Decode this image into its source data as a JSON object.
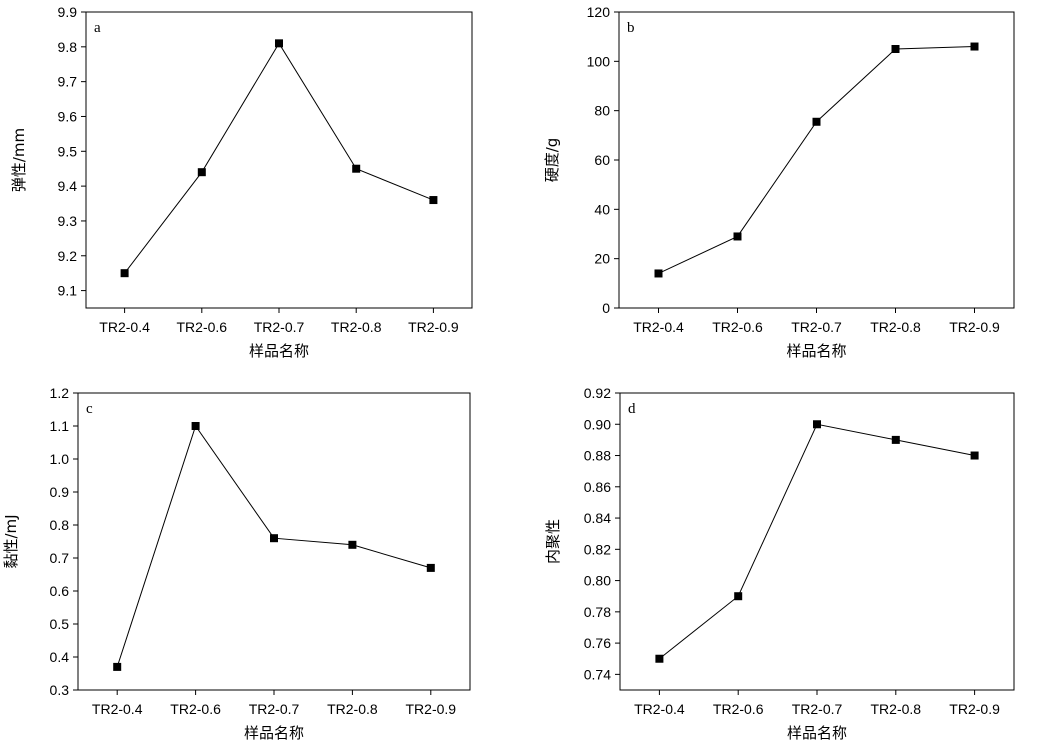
{
  "chart_data": [
    {
      "type": "line",
      "panel_label": "a",
      "categories": [
        "TR2-0.4",
        "TR2-0.6",
        "TR2-0.7",
        "TR2-0.8",
        "TR2-0.9"
      ],
      "values": [
        9.15,
        9.44,
        9.81,
        9.45,
        9.36
      ],
      "xlabel": "样品名称",
      "ylabel": "弹性/mm",
      "ylim": [
        9.05,
        9.9
      ],
      "yticks": [
        "9.1",
        "9.2",
        "9.3",
        "9.4",
        "9.5",
        "9.6",
        "9.7",
        "9.8",
        "9.9"
      ],
      "ytick_values": [
        9.1,
        9.2,
        9.3,
        9.4,
        9.5,
        9.6,
        9.7,
        9.8,
        9.9
      ],
      "grid": false,
      "marker": "square"
    },
    {
      "type": "line",
      "panel_label": "b",
      "categories": [
        "TR2-0.4",
        "TR2-0.6",
        "TR2-0.7",
        "TR2-0.8",
        "TR2-0.9"
      ],
      "values": [
        14,
        29,
        75.5,
        105,
        106
      ],
      "xlabel": "样品名称",
      "ylabel": "硬度/g",
      "ylim": [
        0,
        120
      ],
      "yticks": [
        "0",
        "20",
        "40",
        "60",
        "80",
        "100",
        "120"
      ],
      "ytick_values": [
        0,
        20,
        40,
        60,
        80,
        100,
        120
      ],
      "grid": false,
      "marker": "square"
    },
    {
      "type": "line",
      "panel_label": "c",
      "categories": [
        "TR2-0.4",
        "TR2-0.6",
        "TR2-0.7",
        "TR2-0.8",
        "TR2-0.9"
      ],
      "values": [
        0.37,
        1.1,
        0.76,
        0.74,
        0.67
      ],
      "xlabel": "样品名称",
      "ylabel": "黏性/mJ",
      "ylim": [
        0.3,
        1.2
      ],
      "yticks": [
        "0.3",
        "0.4",
        "0.5",
        "0.6",
        "0.7",
        "0.8",
        "0.9",
        "1.0",
        "1.1",
        "1.2"
      ],
      "ytick_values": [
        0.3,
        0.4,
        0.5,
        0.6,
        0.7,
        0.8,
        0.9,
        1.0,
        1.1,
        1.2
      ],
      "grid": false,
      "marker": "square"
    },
    {
      "type": "line",
      "panel_label": "d",
      "categories": [
        "TR2-0.4",
        "TR2-0.6",
        "TR2-0.7",
        "TR2-0.8",
        "TR2-0.9"
      ],
      "values": [
        0.75,
        0.79,
        0.9,
        0.89,
        0.88
      ],
      "xlabel": "样品名称",
      "ylabel": "内聚性",
      "ylim": [
        0.73,
        0.92
      ],
      "yticks": [
        "0.74",
        "0.76",
        "0.78",
        "0.80",
        "0.82",
        "0.84",
        "0.86",
        "0.88",
        "0.90",
        "0.92"
      ],
      "ytick_values": [
        0.74,
        0.76,
        0.78,
        0.8,
        0.82,
        0.84,
        0.86,
        0.88,
        0.9,
        0.92
      ],
      "grid": false,
      "marker": "square"
    }
  ]
}
